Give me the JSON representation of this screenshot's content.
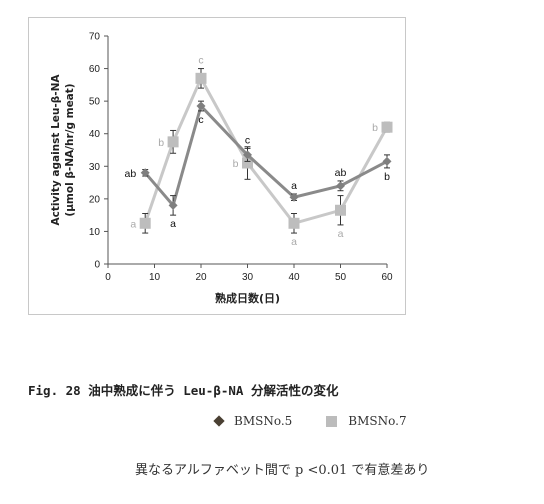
{
  "chart_data": {
    "type": "line",
    "ylabel_line1": "Activity against Leu-β-NA",
    "ylabel_line2": "(μmol β-NA/hr/g meat)",
    "xlabel": "熟成日数(日)",
    "xlim": [
      0,
      60
    ],
    "ylim": [
      0,
      70
    ],
    "xticks": [
      0,
      10,
      20,
      30,
      40,
      50,
      60
    ],
    "yticks": [
      0,
      10,
      20,
      30,
      40,
      50,
      60,
      70
    ],
    "grid": false,
    "series": [
      {
        "name": "BMSNo.5",
        "color": "#8a8a8a",
        "marker": "diamond",
        "marker_color": "#7f7f7f",
        "label_color": "#111111",
        "x": [
          8,
          14,
          20,
          30,
          40,
          50,
          60
        ],
        "values": [
          28,
          18,
          48.5,
          33.5,
          20.5,
          24,
          31.5
        ],
        "errors": [
          1,
          3,
          1.5,
          2,
          1,
          1.5,
          2
        ],
        "labels": [
          "ab",
          "a",
          "c",
          "c",
          "a",
          "ab",
          "b"
        ],
        "label_pos": [
          "left",
          "below",
          "below",
          "above",
          "above",
          "above",
          "below"
        ]
      },
      {
        "name": "BMSNo.7",
        "color": "#c8c8c8",
        "marker": "square",
        "marker_color": "#bdbdbd",
        "label_color": "#aaaaaa",
        "x": [
          8,
          14,
          20,
          30,
          40,
          50,
          60
        ],
        "values": [
          12.5,
          37.5,
          57,
          31,
          12.5,
          16.5,
          42
        ],
        "errors": [
          3,
          3.5,
          3,
          5,
          3,
          4.5,
          1.5
        ],
        "labels": [
          "a",
          "b",
          "c",
          "b",
          "a",
          "a",
          "b"
        ],
        "label_pos": [
          "left",
          "left",
          "above",
          "left",
          "below",
          "below",
          "left"
        ]
      }
    ]
  },
  "caption": "Fig. 28  油中熟成に伴う Leu-β-NA 分解活性の変化",
  "legend": [
    "BMSNo.5",
    "BMSNo.7"
  ],
  "footnote": "異なるアルファベット間で p <0.01 で有意差あり"
}
